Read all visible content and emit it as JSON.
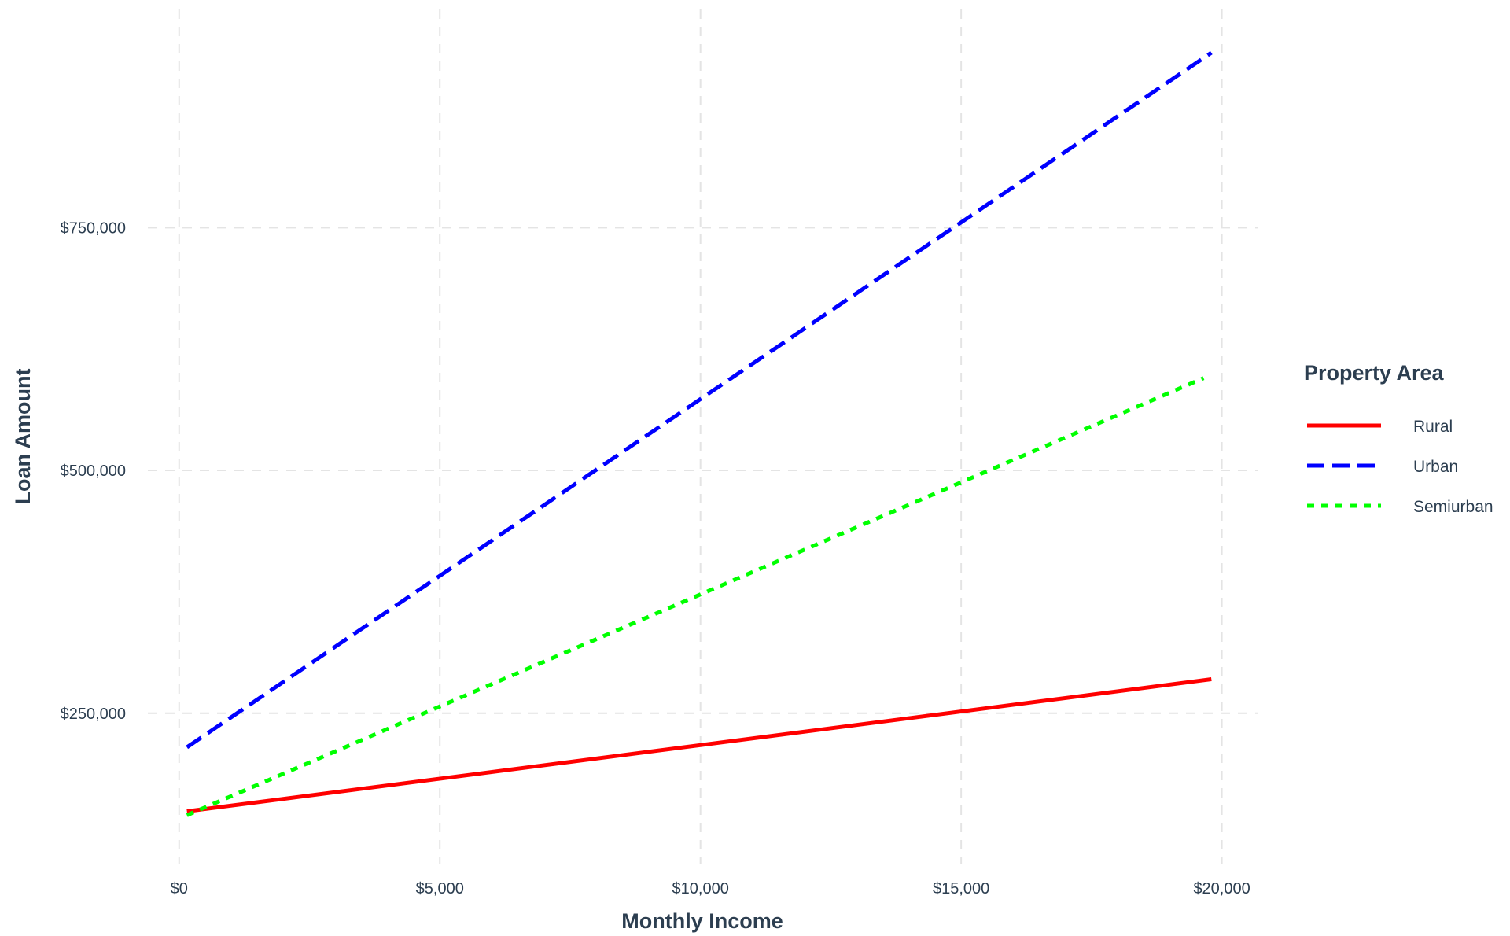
{
  "chart_data": {
    "type": "line",
    "title": "",
    "xlabel": "Monthly Income",
    "ylabel": "Loan Amount",
    "xlim": [
      -600,
      20700
    ],
    "ylim": [
      100000,
      960000
    ],
    "x_ticks": [
      0,
      5000,
      10000,
      15000,
      20000
    ],
    "x_tick_labels": [
      "$0",
      "$5,000",
      "$10,000",
      "$15,000",
      "$20,000"
    ],
    "y_ticks": [
      250000,
      500000,
      750000
    ],
    "y_tick_labels": [
      "$250,000",
      "$500,000",
      "$750,000"
    ],
    "grid": true,
    "legend_title": "Property Area",
    "legend_position": "right",
    "series": [
      {
        "name": "Rural",
        "color": "#ff0000",
        "dash": "solid",
        "x": [
          150,
          19800
        ],
        "y": [
          149000,
          285000
        ]
      },
      {
        "name": "Urban",
        "color": "#0000ff",
        "dash": "dashed",
        "x": [
          150,
          19800
        ],
        "y": [
          215000,
          930000
        ]
      },
      {
        "name": "Semiurban",
        "color": "#00ff00",
        "dash": "dotted",
        "x": [
          150,
          19650
        ],
        "y": [
          145000,
          595000
        ]
      }
    ]
  }
}
